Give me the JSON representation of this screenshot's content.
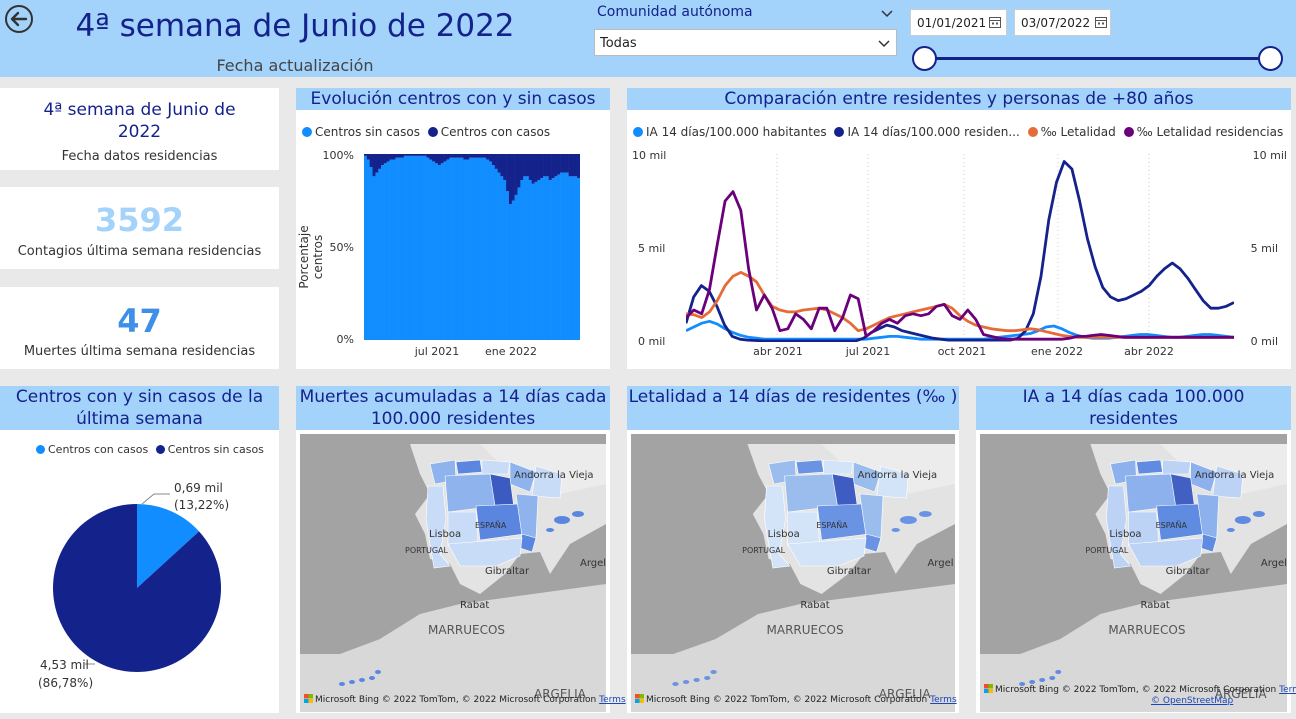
{
  "header": {
    "title": "4ª semana de Junio de 2022",
    "subtitle": "Fecha actualización",
    "slicer_label": "Comunidad autónoma",
    "slicer_value": "Todas",
    "date_start": "01/01/2021",
    "date_end": "03/07/2022"
  },
  "kpis": {
    "week_value": "4ª semana de Junio de 2022",
    "week_label": "Fecha datos residencias",
    "cases_value": "3592",
    "cases_label": "Contagios última semana residencias",
    "deaths_value": "47",
    "deaths_label": "Muertes última semana residencias"
  },
  "colors": {
    "accent": "#14228c",
    "light_blue": "#118dff",
    "orange": "#e66c37",
    "purple": "#6b007b",
    "header_bg": "#a3d2fb"
  },
  "bar_chart": {
    "title": "Evolución centros con y sin casos",
    "legend": [
      "Centros sin casos",
      "Centros con casos"
    ],
    "ylabel": "Porcentaje centros",
    "yticks": [
      "100%",
      "50%",
      "0%"
    ],
    "xticks": [
      "jul 2021",
      "ene 2022"
    ]
  },
  "line_chart": {
    "title": "Comparación entre residentes y personas de +80 años",
    "legend": [
      "IA 14 días/100.000 habitantes",
      "IA 14 días/100.000 residen...",
      "‰ Letalidad",
      "‰ Letalidad residencias"
    ],
    "yticks_left": [
      "10 mil",
      "5 mil",
      "0 mil"
    ],
    "yticks_right": [
      "10 mil",
      "5 mil",
      "0 mil"
    ],
    "xticks": [
      "abr 2021",
      "jul 2021",
      "oct 2021",
      "ene 2022",
      "abr 2022"
    ]
  },
  "pie_chart": {
    "title": "Centros con y sin casos de la última semana",
    "legend": [
      "Centros con casos",
      "Centros sin casos"
    ],
    "label_small_value": "0,69 mil",
    "label_small_pct": "(13,22%)",
    "label_large_value": "4,53 mil",
    "label_large_pct": "(86,78%)"
  },
  "maps": {
    "map1_title": "Muertes acumuladas a 14 días cada 100.000 residentes",
    "map2_title": "Letalidad a 14 días de residentes (‰ )",
    "map3_title": "IA a 14 días cada 100.000 residentes",
    "labels": {
      "andorra": "Andorra la Vieja",
      "lisboa": "Lisboa",
      "espana": "ESPAÑA",
      "portugal": "PORTUGAL",
      "argel": "Argel",
      "gibraltar": "Gibraltar",
      "rabat": "Rabat",
      "marruecos": "MARRUECOS",
      "argelia": "ARGELIA"
    },
    "attrib_ms": "Microsoft Bing",
    "attrib_copyright": "© 2022 TomTom, © 2022 Microsoft Corporation",
    "attrib_terms": "Terms",
    "attrib_osm": "© OpenStreetMap"
  },
  "chart_data": [
    {
      "type": "bar",
      "title": "Evolución centros con y sin casos",
      "ylabel": "Porcentaje centros",
      "ylim": [
        0,
        100
      ],
      "x_range": [
        "2021-01",
        "2022-06"
      ],
      "series": [
        {
          "name": "Centros con casos",
          "values": [
            1,
            3,
            7,
            12,
            10,
            8,
            6,
            5,
            4,
            3,
            3,
            2,
            2,
            2,
            1,
            1,
            1,
            1,
            1,
            1,
            1,
            1,
            2,
            3,
            4,
            5,
            6,
            5,
            4,
            3,
            2,
            2,
            2,
            2,
            2,
            3,
            3,
            2,
            2,
            2,
            2,
            2,
            2,
            3,
            4,
            6,
            8,
            10,
            12,
            14,
            20,
            27,
            25,
            22,
            18,
            14,
            12,
            12,
            14,
            16,
            15,
            14,
            13,
            12,
            12,
            14,
            13,
            12,
            11,
            10,
            10,
            10,
            12,
            12,
            12,
            13
          ]
        },
        {
          "name": "Centros sin casos",
          "values": [
            99,
            97,
            93,
            88,
            90,
            92,
            94,
            95,
            96,
            97,
            97,
            98,
            98,
            98,
            99,
            99,
            99,
            99,
            99,
            99,
            99,
            99,
            98,
            97,
            96,
            95,
            94,
            95,
            96,
            97,
            98,
            98,
            98,
            98,
            98,
            97,
            97,
            98,
            98,
            98,
            98,
            98,
            98,
            97,
            96,
            94,
            92,
            90,
            88,
            86,
            80,
            73,
            75,
            78,
            82,
            86,
            88,
            88,
            86,
            84,
            85,
            86,
            87,
            88,
            88,
            86,
            87,
            88,
            89,
            90,
            90,
            90,
            88,
            88,
            88,
            87
          ]
        }
      ]
    },
    {
      "type": "line",
      "title": "Comparación entre residentes y personas de +80 años",
      "ylim": [
        0,
        10000
      ],
      "y2lim": [
        0,
        10000
      ],
      "x_range": [
        "2021-01",
        "2022-06"
      ],
      "series": [
        {
          "name": "IA 14 días/100.000 habitantes",
          "values": [
            600,
            800,
            1000,
            1100,
            950,
            700,
            500,
            350,
            250,
            200,
            150,
            150,
            150,
            150,
            150,
            150,
            150,
            150,
            150,
            150,
            150,
            150,
            150,
            150,
            200,
            250,
            300,
            300,
            250,
            200,
            150,
            150,
            150,
            150,
            150,
            150,
            150,
            150,
            150,
            200,
            250,
            300,
            350,
            400,
            450,
            600,
            800,
            850,
            700,
            500,
            350,
            250,
            200,
            200,
            200,
            250,
            300,
            350,
            400,
            400,
            350,
            300,
            250,
            250,
            300,
            350,
            400,
            400,
            350,
            300,
            250
          ]
        },
        {
          "name": "IA 14 días/100.000 residentes",
          "values": [
            1000,
            2400,
            3000,
            2700,
            1900,
            900,
            300,
            150,
            100,
            80,
            60,
            60,
            60,
            60,
            60,
            60,
            60,
            60,
            60,
            60,
            60,
            60,
            60,
            200,
            500,
            700,
            900,
            800,
            600,
            500,
            400,
            300,
            200,
            150,
            100,
            100,
            100,
            100,
            100,
            100,
            100,
            100,
            100,
            200,
            600,
            1500,
            3500,
            6500,
            8500,
            9600,
            9200,
            7500,
            5500,
            4000,
            2900,
            2400,
            2200,
            2300,
            2500,
            2700,
            3000,
            3500,
            3900,
            4200,
            3900,
            3400,
            2800,
            2200,
            1800,
            1800,
            1900,
            2100
          ]
        },
        {
          "name": "‰ Letalidad",
          "values": [
            1500,
            1450,
            1300,
            1600,
            2200,
            3000,
            3500,
            3700,
            3500,
            3200,
            2500,
            1900,
            1700,
            1600,
            1600,
            1700,
            1750,
            1800,
            1700,
            1500,
            1300,
            1000,
            600,
            700,
            900,
            1100,
            1300,
            1400,
            1500,
            1600,
            1700,
            1800,
            1900,
            2000,
            1800,
            1400,
            1100,
            900,
            800,
            700,
            650,
            600,
            600,
            650,
            700,
            650,
            550,
            450,
            350,
            300,
            250,
            250,
            250,
            250,
            250,
            250,
            250,
            250,
            250,
            250,
            250,
            250,
            250,
            250,
            250,
            250,
            250,
            250,
            250,
            250,
            250
          ]
        },
        {
          "name": "‰ Letalidad residencias",
          "values": [
            1300,
            1700,
            1500,
            2800,
            5200,
            7500,
            8000,
            7000,
            3900,
            1700,
            2500,
            1800,
            600,
            700,
            1500,
            1200,
            700,
            1800,
            1800,
            600,
            1300,
            2500,
            2300,
            300,
            600,
            1000,
            1200,
            1000,
            1400,
            1500,
            1400,
            1500,
            1900,
            2000,
            1400,
            1200,
            1700,
            1200,
            400,
            300,
            200,
            150,
            150,
            150,
            150,
            150,
            150,
            150,
            150,
            200,
            300,
            300,
            350,
            400,
            350,
            300,
            250,
            250,
            250,
            250,
            250,
            250,
            250,
            250,
            250,
            250,
            250,
            250,
            250,
            250,
            250
          ]
        }
      ]
    },
    {
      "type": "pie",
      "title": "Centros con y sin casos de la última semana",
      "series": [
        {
          "name": "Centros con casos",
          "value": 0.69,
          "pct": 13.22
        },
        {
          "name": "Centros sin casos",
          "value": 4.53,
          "pct": 86.78
        }
      ]
    }
  ]
}
